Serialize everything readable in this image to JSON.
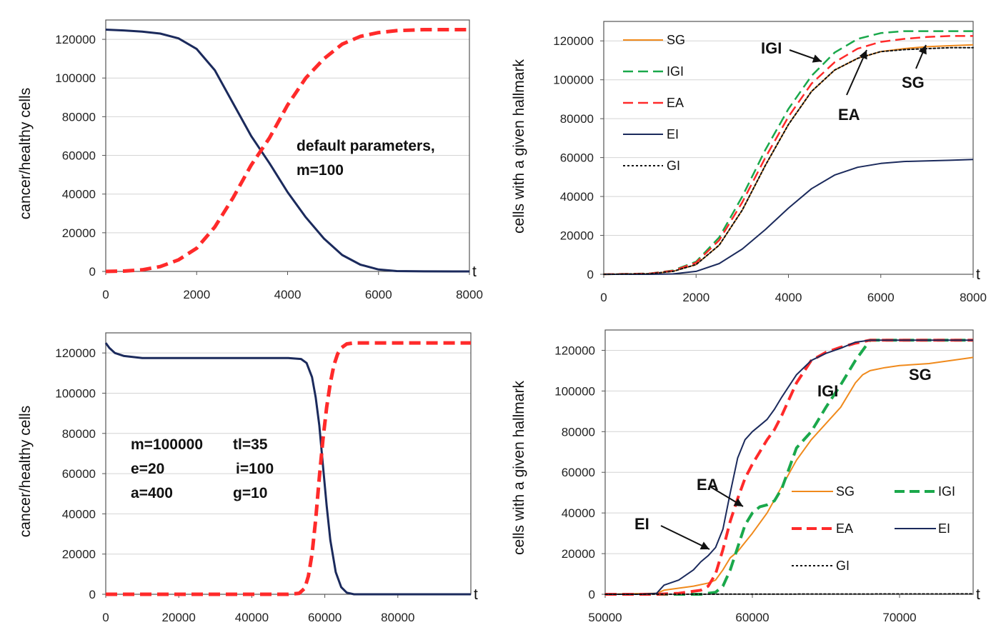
{
  "chart_data": [
    {
      "type": "line",
      "panel": "top-left",
      "ylabel": "cancer/healthy cells",
      "xlabel": "t",
      "xlim": [
        0,
        8000
      ],
      "ylim": [
        0,
        130000
      ],
      "xticks": [
        0,
        2000,
        4000,
        6000,
        8000
      ],
      "yticks": [
        0,
        20000,
        40000,
        60000,
        80000,
        100000,
        120000
      ],
      "grid": "horizontal",
      "annotations": [
        {
          "text": "default parameters,",
          "x": 4300,
          "y": 66000
        },
        {
          "text": "m=100",
          "x": 4300,
          "y": 53000
        }
      ],
      "series": [
        {
          "color": "#1b2a5c",
          "dash": "solid",
          "width": 3,
          "x": [
            0,
            400,
            800,
            1200,
            1600,
            2000,
            2400,
            2800,
            3200,
            3600,
            4000,
            4400,
            4800,
            5200,
            5600,
            6000,
            6400,
            7000,
            8000
          ],
          "y": [
            125000,
            124600,
            124000,
            123000,
            120500,
            115000,
            104000,
            87000,
            70000,
            56000,
            41000,
            28000,
            17000,
            8500,
            3500,
            1000,
            200,
            50,
            0
          ]
        },
        {
          "color": "#ff2a2a",
          "dash": "dashed",
          "width": 5,
          "x": [
            0,
            400,
            800,
            1200,
            1600,
            2000,
            2400,
            2800,
            3200,
            3600,
            4000,
            4400,
            4800,
            5200,
            5600,
            6000,
            6400,
            7000,
            8000
          ],
          "y": [
            0,
            200,
            800,
            2500,
            6000,
            12000,
            23000,
            38000,
            55000,
            69000,
            86000,
            100000,
            110000,
            117500,
            121500,
            123500,
            124500,
            125000,
            125000
          ]
        }
      ]
    },
    {
      "type": "line",
      "panel": "top-right",
      "ylabel": "cells with a given hallmark",
      "xlabel": "t",
      "xlim": [
        0,
        8000
      ],
      "ylim": [
        0,
        130000
      ],
      "xticks": [
        0,
        2000,
        4000,
        6000,
        8000
      ],
      "yticks": [
        0,
        20000,
        40000,
        60000,
        80000,
        100000,
        120000
      ],
      "grid": "horizontal",
      "legend": "top-left",
      "annotations": [
        {
          "text": "IGI",
          "x": 3500,
          "y": 114000
        },
        {
          "text": "EA",
          "x": 5100,
          "y": 80000
        },
        {
          "text": "SG",
          "x": 6700,
          "y": 97000
        }
      ],
      "series": [
        {
          "name": "SG",
          "color": "#f08a1c",
          "dash": "solid",
          "width": 2,
          "x": [
            0,
            1000,
            1500,
            2000,
            2500,
            3000,
            3500,
            4000,
            4500,
            5000,
            5500,
            6000,
            6500,
            7000,
            7500,
            8000
          ],
          "y": [
            0,
            300,
            1500,
            5000,
            15000,
            33000,
            56000,
            77000,
            94000,
            105000,
            111000,
            114500,
            116000,
            117000,
            117500,
            118000
          ]
        },
        {
          "name": "IGI",
          "color": "#1aa84b",
          "dash": "dashed",
          "width": 2.5,
          "x": [
            0,
            1000,
            1500,
            2000,
            2500,
            3000,
            3500,
            4000,
            4500,
            5000,
            5500,
            6000,
            6500,
            7000,
            7500,
            8000
          ],
          "y": [
            0,
            400,
            2000,
            6500,
            19000,
            40000,
            64000,
            85000,
            102000,
            114000,
            121000,
            124000,
            125000,
            125000,
            125000,
            125000
          ]
        },
        {
          "name": "EA",
          "color": "#ff2a2a",
          "dash": "dashed",
          "width": 2.5,
          "x": [
            0,
            1000,
            1500,
            2000,
            2500,
            3000,
            3500,
            4000,
            4500,
            5000,
            5500,
            6000,
            6500,
            7000,
            7500,
            8000
          ],
          "y": [
            0,
            350,
            1800,
            6000,
            17500,
            37000,
            60000,
            81000,
            98000,
            109000,
            116000,
            119500,
            121000,
            122000,
            122500,
            122500
          ]
        },
        {
          "name": "EI",
          "color": "#1b2a5c",
          "dash": "solid",
          "width": 2,
          "x": [
            0,
            1000,
            1500,
            2000,
            2500,
            3000,
            3500,
            4000,
            4500,
            5000,
            5500,
            6000,
            6500,
            7000,
            7500,
            8000
          ],
          "y": [
            0,
            0,
            200,
            1500,
            5500,
            13000,
            23000,
            34000,
            44000,
            51000,
            55000,
            57000,
            58000,
            58300,
            58600,
            59000
          ]
        },
        {
          "name": "GI",
          "color": "#111111",
          "dash": "dotted",
          "width": 2,
          "x": [
            0,
            1000,
            1500,
            2000,
            2500,
            3000,
            3500,
            4000,
            4500,
            5000,
            5500,
            6000,
            6500,
            7000,
            7500,
            8000
          ],
          "y": [
            0,
            300,
            1500,
            5000,
            15000,
            33000,
            56000,
            77000,
            94000,
            105000,
            111000,
            114500,
            115500,
            116000,
            116500,
            116500
          ]
        }
      ]
    },
    {
      "type": "line",
      "panel": "bottom-left",
      "ylabel": "cancer/healthy cells",
      "xlabel": "t",
      "xlim": [
        0,
        100000
      ],
      "ylim": [
        0,
        130000
      ],
      "xticks": [
        0,
        20000,
        40000,
        60000,
        80000
      ],
      "yticks": [
        0,
        20000,
        40000,
        60000,
        80000,
        100000,
        120000
      ],
      "grid": "horizontal",
      "annotations": [
        {
          "text": "m=100000",
          "x": 7000,
          "y": 74000
        },
        {
          "text": "tl=35",
          "x": 33500,
          "y": 74000
        },
        {
          "text": "e=20",
          "x": 7000,
          "y": 62000
        },
        {
          "text": "i=100",
          "x": 34000,
          "y": 62000
        },
        {
          "text": "a=400",
          "x": 7000,
          "y": 50000
        },
        {
          "text": "g=10",
          "x": 34000,
          "y": 50000
        }
      ],
      "series": [
        {
          "color": "#1b2a5c",
          "dash": "solid",
          "width": 3,
          "x": [
            0,
            1000,
            2500,
            5000,
            10000,
            20000,
            40000,
            50000,
            53500,
            55000,
            56500,
            57500,
            58500,
            59500,
            60500,
            61500,
            63000,
            64500,
            66000,
            68000,
            100000
          ],
          "y": [
            125000,
            122500,
            120000,
            118500,
            117500,
            117500,
            117500,
            117500,
            117000,
            115000,
            108000,
            98000,
            84000,
            64000,
            44000,
            27000,
            11000,
            3500,
            800,
            0,
            0
          ]
        },
        {
          "color": "#ff2a2a",
          "dash": "dashed",
          "width": 5,
          "x": [
            0,
            50000,
            53000,
            54500,
            55500,
            56500,
            57500,
            58500,
            59500,
            60500,
            61500,
            62500,
            63500,
            64500,
            66000,
            68000,
            100000
          ],
          "y": [
            0,
            0,
            500,
            3000,
            9000,
            20000,
            37000,
            58000,
            77000,
            93000,
            105000,
            114000,
            119500,
            122500,
            124500,
            125000,
            125000
          ]
        }
      ]
    },
    {
      "type": "line",
      "panel": "bottom-right",
      "ylabel": "cells with a given hallmark",
      "xlabel": "t",
      "xlim": [
        50000,
        75000
      ],
      "ylim": [
        0,
        130000
      ],
      "xticks": [
        50000,
        60000,
        70000
      ],
      "yticks": [
        0,
        20000,
        40000,
        60000,
        80000,
        100000,
        120000
      ],
      "grid": "horizontal",
      "legend": "bottom-right",
      "annotations": [
        {
          "text": "SG",
          "x": 71000,
          "y": 106000
        },
        {
          "text": "IGI",
          "x": 64800,
          "y": 98000
        },
        {
          "text": "EA",
          "x": 56300,
          "y": 53000
        },
        {
          "text": "EI",
          "x": 52000,
          "y": 33000
        }
      ],
      "series": [
        {
          "name": "SG",
          "color": "#f08a1c",
          "dash": "solid",
          "width": 2,
          "x": [
            50000,
            53500,
            54000,
            56000,
            57000,
            57500,
            58000,
            58500,
            59000,
            60000,
            61000,
            62000,
            63000,
            64000,
            65000,
            66000,
            67000,
            67500,
            68000,
            69000,
            70000,
            72000,
            75000
          ],
          "y": [
            0,
            500,
            2000,
            4000,
            5500,
            7000,
            12000,
            18000,
            21000,
            30000,
            40000,
            53000,
            66000,
            76000,
            84000,
            92000,
            104000,
            108000,
            110000,
            111500,
            112500,
            113500,
            116500
          ]
        },
        {
          "name": "IGI",
          "color": "#1aa84b",
          "dash": "dashed",
          "width": 4,
          "x": [
            50000,
            56500,
            57500,
            58000,
            58500,
            59000,
            59500,
            60000,
            60500,
            61000,
            61500,
            62000,
            62500,
            63000,
            64000,
            65000,
            66000,
            67000,
            68000,
            69000,
            70000,
            75000
          ],
          "y": [
            0,
            0,
            1000,
            4000,
            12000,
            23000,
            34000,
            40000,
            43000,
            44000,
            46000,
            52000,
            62000,
            72000,
            80000,
            92000,
            103000,
            115000,
            125000,
            125000,
            125000,
            125000
          ]
        },
        {
          "name": "EA",
          "color": "#ff2a2a",
          "dash": "dashed",
          "width": 4,
          "x": [
            50000,
            53500,
            55000,
            56500,
            57000,
            57500,
            58000,
            58500,
            59000,
            59500,
            60000,
            60500,
            61000,
            61500,
            62000,
            63000,
            64000,
            65000,
            66000,
            67000,
            68000,
            70000,
            75000
          ],
          "y": [
            0,
            0,
            500,
            2000,
            4000,
            10000,
            22000,
            36000,
            47000,
            57000,
            64000,
            70000,
            76000,
            81000,
            88000,
            104000,
            115000,
            119000,
            121500,
            123500,
            125000,
            125000,
            125000
          ]
        },
        {
          "name": "EI",
          "color": "#1b2a5c",
          "dash": "solid",
          "width": 2,
          "x": [
            50000,
            52500,
            53500,
            54000,
            55000,
            56000,
            56500,
            57000,
            57500,
            58000,
            58500,
            59000,
            59500,
            60000,
            60500,
            61000,
            61500,
            62000,
            63000,
            64000,
            65000,
            66000,
            67000,
            68000,
            70000,
            75000
          ],
          "y": [
            0,
            0,
            500,
            4500,
            7000,
            12000,
            16000,
            19000,
            23000,
            32000,
            50000,
            67000,
            76000,
            80000,
            83000,
            86000,
            91000,
            97000,
            108000,
            115000,
            118500,
            121000,
            124000,
            125000,
            125000,
            125000
          ]
        },
        {
          "name": "GI",
          "color": "#111111",
          "dash": "dotted",
          "width": 2,
          "x": [
            50000,
            75000
          ],
          "y": [
            0,
            200
          ]
        }
      ]
    }
  ],
  "legend_top_right": [
    "SG",
    "IGI",
    "EA",
    "EI",
    "GI"
  ],
  "legend_bottom_right": [
    "SG",
    "IGI",
    "EA",
    "EI",
    "GI"
  ]
}
